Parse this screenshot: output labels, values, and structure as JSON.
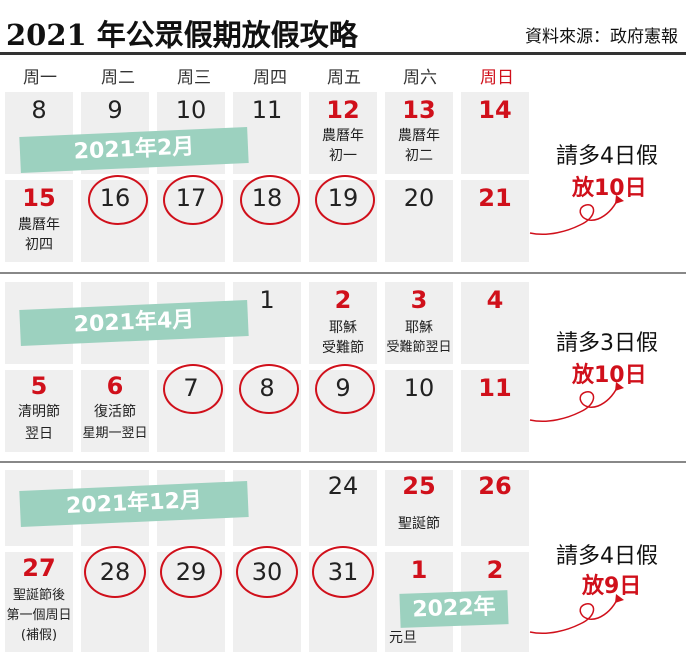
{
  "header": {
    "title": "2021 年公眾假期放假攻略",
    "source": "資料來源：政府憲報"
  },
  "weekdays": [
    "周一",
    "周二",
    "周三",
    "周四",
    "周五",
    "周六",
    "周日"
  ],
  "colors": {
    "red": "#d0101b",
    "band": "#9cd1bf",
    "cell": "#efefef"
  },
  "feb": {
    "month_label": "2021年2月",
    "week1": {
      "d8": "8",
      "d9": "9",
      "d10": "10",
      "d11": "11",
      "d12": "12",
      "d12_note1": "農曆年",
      "d12_note2": "初一",
      "d13": "13",
      "d13_note1": "農曆年",
      "d13_note2": "初二",
      "d14": "14"
    },
    "week2": {
      "d15": "15",
      "d15_note1": "農曆年",
      "d15_note2": "初四",
      "d16": "16",
      "d17": "17",
      "d18": "18",
      "d19": "19",
      "d20": "20",
      "d21": "21"
    },
    "tip_line1": "請多4日假",
    "tip_line2": "放10日"
  },
  "apr": {
    "month_label": "2021年4月",
    "week1": {
      "d1": "1",
      "d2": "2",
      "d2_note1": "耶穌",
      "d2_note2": "受難節",
      "d3": "3",
      "d3_note1": "耶穌",
      "d3_note2": "受難節翌日",
      "d4": "4"
    },
    "week2": {
      "d5": "5",
      "d5_note1": "清明節",
      "d5_note2": "翌日",
      "d6": "6",
      "d6_note1": "復活節",
      "d6_note2": "星期一翌日",
      "d7": "7",
      "d8": "8",
      "d9": "9",
      "d10": "10",
      "d11": "11"
    },
    "tip_line1": "請多3日假",
    "tip_line2": "放10日"
  },
  "dec": {
    "month_label": "2021年12月",
    "week1": {
      "d24": "24",
      "d25": "25",
      "d25_note": "聖誕節",
      "d26": "26"
    },
    "week2": {
      "d27": "27",
      "d27_note1": "聖誕節後",
      "d27_note2": "第一個周日",
      "d27_note3": "(補假)",
      "d28": "28",
      "d29": "29",
      "d30": "30",
      "d31": "31",
      "d1": "1",
      "d1_note": "元旦",
      "d2": "2"
    },
    "year_label": "2022年",
    "tip_line1": "請多4日假",
    "tip_line2": "放9日"
  }
}
